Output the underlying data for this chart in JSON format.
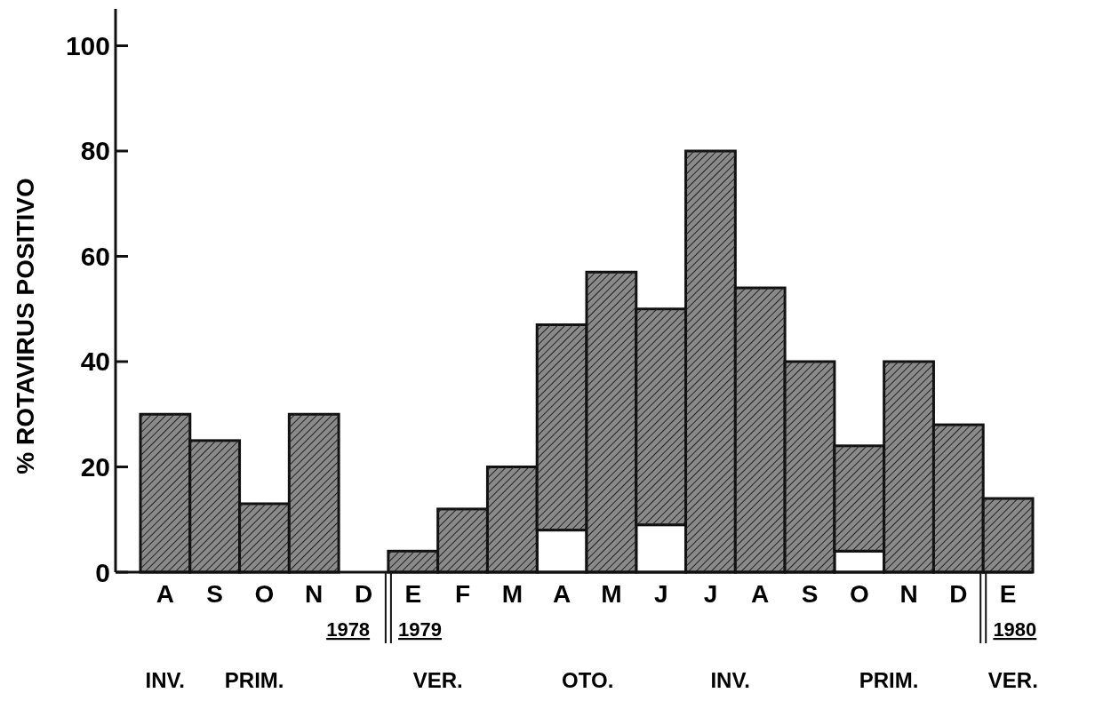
{
  "chart_data": {
    "type": "bar",
    "stacked": true,
    "ylabel": "% ROTAVIRUS POSITIVO",
    "categories": [
      "A",
      "S",
      "O",
      "N",
      "D",
      "E",
      "F",
      "M",
      "A",
      "M",
      "J",
      "J",
      "A",
      "S",
      "O",
      "N",
      "D",
      "E"
    ],
    "series": [
      {
        "color": "#ffffff",
        "values": [
          null,
          null,
          null,
          null,
          null,
          null,
          null,
          null,
          8,
          null,
          9,
          null,
          null,
          null,
          4,
          null,
          null,
          null
        ]
      },
      {
        "color": "#8a8a8a",
        "values": [
          30,
          25,
          13,
          30,
          0,
          4,
          12,
          20,
          39,
          57,
          41,
          80,
          54,
          40,
          20,
          40,
          28,
          14
        ]
      }
    ],
    "ylim": [
      0,
      107
    ],
    "yticks": [
      0,
      20,
      40,
      60,
      80,
      100
    ],
    "annotations": [
      "1978",
      "1979",
      "1980",
      "INV.",
      "PRIM.",
      "VER.",
      "OTO.",
      "INV.",
      "PRIM.",
      "VER."
    ]
  }
}
